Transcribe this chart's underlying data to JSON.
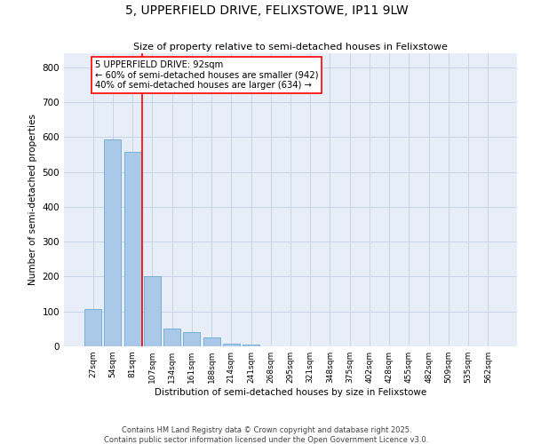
{
  "title": "5, UPPERFIELD DRIVE, FELIXSTOWE, IP11 9LW",
  "subtitle": "Size of property relative to semi-detached houses in Felixstowe",
  "xlabel": "Distribution of semi-detached houses by size in Felixstowe",
  "ylabel": "Number of semi-detached properties",
  "categories": [
    "27sqm",
    "54sqm",
    "81sqm",
    "107sqm",
    "134sqm",
    "161sqm",
    "188sqm",
    "214sqm",
    "241sqm",
    "268sqm",
    "295sqm",
    "321sqm",
    "348sqm",
    "375sqm",
    "402sqm",
    "428sqm",
    "455sqm",
    "482sqm",
    "509sqm",
    "535sqm",
    "562sqm"
  ],
  "values": [
    107,
    592,
    557,
    201,
    52,
    40,
    25,
    7,
    4,
    0,
    0,
    0,
    0,
    0,
    0,
    0,
    0,
    0,
    0,
    0,
    0
  ],
  "bar_color": "#aac8e8",
  "bar_edge_color": "#6aaad4",
  "property_line_x": 2.5,
  "annotation_label": "5 UPPERFIELD DRIVE: 92sqm\n← 60% of semi-detached houses are smaller (942)\n40% of semi-detached houses are larger (634) →",
  "ylim": [
    0,
    840
  ],
  "yticks": [
    0,
    100,
    200,
    300,
    400,
    500,
    600,
    700,
    800
  ],
  "grid_color": "#c8d4e8",
  "background_color": "#e8eef8",
  "footer_line1": "Contains HM Land Registry data © Crown copyright and database right 2025.",
  "footer_line2": "Contains public sector information licensed under the Open Government Licence v3.0."
}
